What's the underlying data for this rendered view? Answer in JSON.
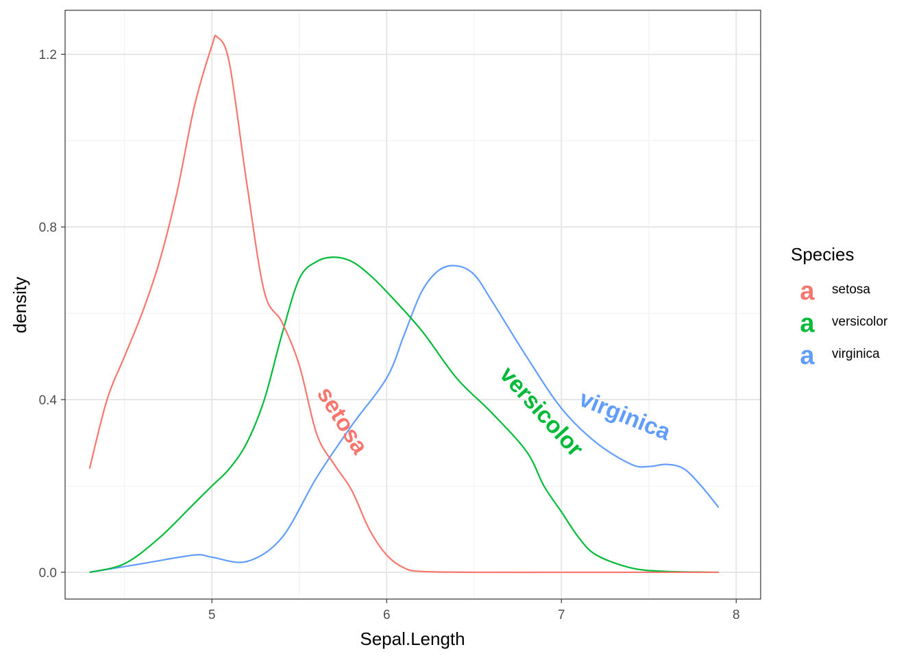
{
  "chart_data": {
    "type": "line",
    "xlabel": "Sepal.Length",
    "ylabel": "density",
    "xlim": [
      4.16,
      8.14
    ],
    "ylim": [
      -0.062,
      1.302
    ],
    "x_ticks": [
      "5",
      "6",
      "7",
      "8"
    ],
    "x_tick_values": [
      5,
      6,
      7,
      8
    ],
    "y_ticks": [
      "0.0",
      "0.4",
      "0.8",
      "1.2"
    ],
    "y_tick_values": [
      0.0,
      0.4,
      0.8,
      1.2
    ],
    "grid": true,
    "legend": {
      "title": "Species",
      "position": "right",
      "key_glyph": "a",
      "entries": [
        "setosa",
        "versicolor",
        "virginica"
      ]
    },
    "series": [
      {
        "name": "setosa",
        "color": "#F8766D",
        "label": "setosa",
        "x": [
          4.3,
          4.4,
          4.5,
          4.6,
          4.7,
          4.8,
          4.9,
          5.0,
          5.03,
          5.1,
          5.2,
          5.3,
          5.4,
          5.5,
          5.6,
          5.7,
          5.8,
          5.9,
          6.0,
          6.1,
          6.2,
          6.5,
          7.0,
          7.5,
          7.9
        ],
        "y": [
          0.24,
          0.4,
          0.5,
          0.6,
          0.72,
          0.88,
          1.08,
          1.22,
          1.24,
          1.18,
          0.9,
          0.65,
          0.58,
          0.48,
          0.32,
          0.25,
          0.19,
          0.1,
          0.04,
          0.01,
          0.002,
          0.0,
          0.0,
          0.0,
          0.0
        ]
      },
      {
        "name": "versicolor",
        "color": "#00BA38",
        "label": "versicolor",
        "x": [
          4.3,
          4.5,
          4.7,
          4.9,
          5.0,
          5.1,
          5.2,
          5.3,
          5.4,
          5.5,
          5.6,
          5.7,
          5.8,
          5.9,
          6.0,
          6.2,
          6.4,
          6.6,
          6.8,
          6.9,
          7.0,
          7.1,
          7.2,
          7.4,
          7.6,
          7.9
        ],
        "y": [
          0.0,
          0.02,
          0.08,
          0.16,
          0.2,
          0.24,
          0.3,
          0.4,
          0.55,
          0.68,
          0.72,
          0.73,
          0.72,
          0.69,
          0.65,
          0.56,
          0.45,
          0.37,
          0.28,
          0.2,
          0.14,
          0.08,
          0.04,
          0.01,
          0.002,
          0.0
        ]
      },
      {
        "name": "virginica",
        "color": "#619CFF",
        "label": "virginica",
        "x": [
          4.3,
          4.6,
          4.9,
          5.0,
          5.2,
          5.4,
          5.6,
          5.8,
          6.0,
          6.1,
          6.2,
          6.3,
          6.4,
          6.5,
          6.6,
          6.8,
          7.0,
          7.2,
          7.4,
          7.5,
          7.6,
          7.7,
          7.8,
          7.9
        ],
        "y": [
          0.0,
          0.02,
          0.04,
          0.035,
          0.025,
          0.08,
          0.22,
          0.34,
          0.45,
          0.55,
          0.65,
          0.7,
          0.71,
          0.69,
          0.63,
          0.5,
          0.38,
          0.3,
          0.25,
          0.245,
          0.25,
          0.24,
          0.2,
          0.15
        ]
      }
    ]
  }
}
